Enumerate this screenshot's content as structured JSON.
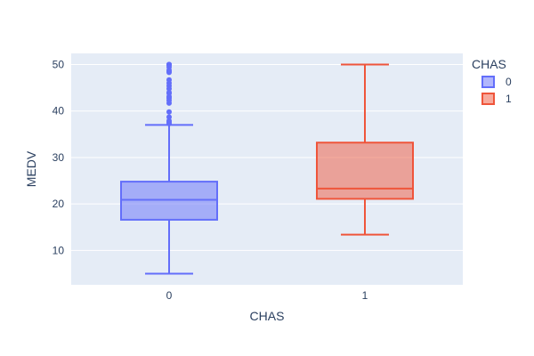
{
  "chart_data": {
    "type": "box",
    "xlabel": "CHAS",
    "ylabel": "MEDV",
    "categories": [
      "0",
      "1"
    ],
    "ylim": [
      2.6,
      52.4
    ],
    "yticks": [
      10,
      20,
      30,
      40,
      50
    ],
    "grid": true,
    "legend": {
      "title": "CHAS",
      "position": "top-right"
    },
    "series": [
      {
        "name": "0",
        "color": "#636efa",
        "fill": "rgba(99,110,250,0.5)",
        "category": "0",
        "q1": 16.6,
        "median": 20.9,
        "q3": 24.8,
        "lowerfence": 5.0,
        "upperfence": 37.0,
        "outliers": [
          50,
          50,
          50,
          50,
          49.5,
          48.8,
          48.5,
          48.3,
          46.7,
          46.0,
          45.4,
          44.8,
          44.0,
          43.8,
          43.1,
          42.8,
          42.3,
          41.7,
          39.8,
          38.7,
          37.9,
          37.6,
          37.3
        ]
      },
      {
        "name": "1",
        "color": "#ef553b",
        "fill": "rgba(239,85,59,0.5)",
        "category": "1",
        "q1": 21.1,
        "median": 23.3,
        "q3": 33.2,
        "lowerfence": 13.4,
        "upperfence": 50.0,
        "outliers": []
      }
    ]
  }
}
